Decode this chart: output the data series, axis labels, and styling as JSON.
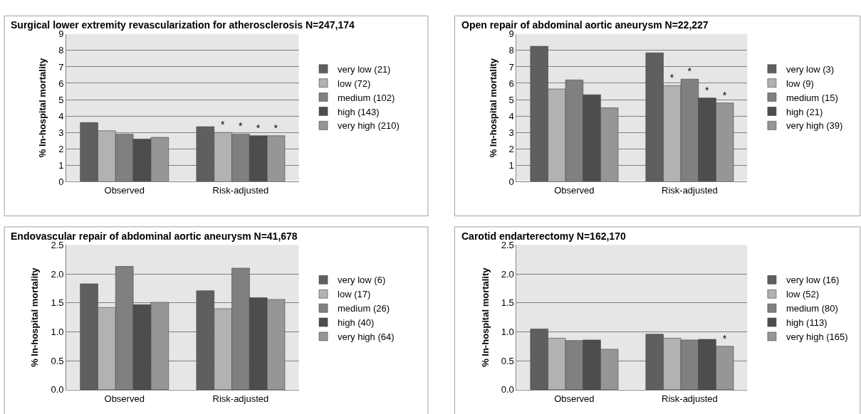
{
  "chart_data": [
    {
      "type": "bar",
      "title": "Surgical lower extremity revascularization for atherosclerosis N=247,174",
      "ylabel": "% In-hospital mortality",
      "categories": [
        "Observed",
        "Risk-adjusted"
      ],
      "series": [
        {
          "name": "very low (21)",
          "color": "#5f5f5f",
          "values": [
            3.6,
            3.35
          ]
        },
        {
          "name": "low (72)",
          "color": "#b2b2b2",
          "values": [
            3.1,
            3.0
          ],
          "value_labels": [
            null,
            "*"
          ]
        },
        {
          "name": "medium (102)",
          "color": "#808080",
          "values": [
            2.9,
            2.9
          ],
          "value_labels": [
            null,
            "*"
          ]
        },
        {
          "name": "high (143)",
          "color": "#4d4d4d",
          "values": [
            2.6,
            2.8
          ],
          "value_labels": [
            null,
            "*"
          ]
        },
        {
          "name": "very high (210)",
          "color": "#969696",
          "values": [
            2.7,
            2.8
          ],
          "value_labels": [
            null,
            "*"
          ]
        }
      ],
      "ylim": [
        0,
        9
      ],
      "yticks": [
        0,
        1,
        2,
        3,
        4,
        5,
        6,
        7,
        8,
        9
      ],
      "grid": "y",
      "legend": "right"
    },
    {
      "type": "bar",
      "title": "Open repair of abdominal aortic aneurysm N=22,227",
      "ylabel": "% In-hospital mortality",
      "categories": [
        "Observed",
        "Risk-adjusted"
      ],
      "series": [
        {
          "name": "very low (3)",
          "color": "#5f5f5f",
          "values": [
            8.25,
            7.85
          ]
        },
        {
          "name": "low (9)",
          "color": "#b2b2b2",
          "values": [
            5.65,
            5.85
          ],
          "value_labels": [
            null,
            "*"
          ]
        },
        {
          "name": "medium (15)",
          "color": "#808080",
          "values": [
            6.2,
            6.25
          ],
          "value_labels": [
            null,
            "*"
          ]
        },
        {
          "name": "high (21)",
          "color": "#4d4d4d",
          "values": [
            5.3,
            5.1
          ],
          "value_labels": [
            null,
            "*"
          ]
        },
        {
          "name": "very high (39)",
          "color": "#969696",
          "values": [
            4.5,
            4.8
          ],
          "value_labels": [
            null,
            "*"
          ]
        }
      ],
      "ylim": [
        0,
        9
      ],
      "yticks": [
        0,
        1,
        2,
        3,
        4,
        5,
        6,
        7,
        8,
        9
      ],
      "grid": "y",
      "legend": "right"
    },
    {
      "type": "bar",
      "title": "Endovascular repair of abdominal aortic aneurysm N=41,678",
      "ylabel": "% In-hospital mortality",
      "categories": [
        "Observed",
        "Risk-adjusted"
      ],
      "series": [
        {
          "name": "very low (6)",
          "color": "#5f5f5f",
          "values": [
            1.83,
            1.71
          ]
        },
        {
          "name": "low (17)",
          "color": "#b2b2b2",
          "values": [
            1.42,
            1.4
          ]
        },
        {
          "name": "medium (26)",
          "color": "#808080",
          "values": [
            2.13,
            2.1
          ]
        },
        {
          "name": "high (40)",
          "color": "#4d4d4d",
          "values": [
            1.47,
            1.59
          ]
        },
        {
          "name": "very high (64)",
          "color": "#969696",
          "values": [
            1.51,
            1.56
          ]
        }
      ],
      "ylim": [
        0,
        2.5
      ],
      "yticks": [
        {
          "value": 0,
          "label": "0.0"
        },
        {
          "value": 0.5,
          "label": "0.5"
        },
        {
          "value": 1,
          "label": "1.0"
        },
        {
          "value": 1.5,
          "label": "1.5"
        },
        {
          "value": 2,
          "label": "2.0"
        },
        {
          "value": 2.5,
          "label": "2.5"
        }
      ],
      "grid": "y",
      "legend": "right"
    },
    {
      "type": "bar",
      "title": "Carotid endarterectomy N=162,170",
      "ylabel": "% In-hospital mortality",
      "categories": [
        "Observed",
        "Risk-adjusted"
      ],
      "series": [
        {
          "name": "very low (16)",
          "color": "#5f5f5f",
          "values": [
            1.05,
            0.96
          ]
        },
        {
          "name": "low (52)",
          "color": "#b2b2b2",
          "values": [
            0.89,
            0.89
          ]
        },
        {
          "name": "medium (80)",
          "color": "#808080",
          "values": [
            0.85,
            0.86
          ]
        },
        {
          "name": "high (113)",
          "color": "#4d4d4d",
          "values": [
            0.86,
            0.87
          ]
        },
        {
          "name": "very high (165)",
          "color": "#969696",
          "values": [
            0.7,
            0.75
          ],
          "value_labels": [
            null,
            "*"
          ]
        }
      ],
      "ylim": [
        0,
        2.5
      ],
      "yticks": [
        {
          "value": 0,
          "label": "0.0"
        },
        {
          "value": 0.5,
          "label": "0.5"
        },
        {
          "value": 1,
          "label": "1.0"
        },
        {
          "value": 1.5,
          "label": "1.5"
        },
        {
          "value": 2,
          "label": "2.0"
        },
        {
          "value": 2.5,
          "label": "2.5"
        }
      ],
      "grid": "y",
      "legend": "right"
    }
  ]
}
